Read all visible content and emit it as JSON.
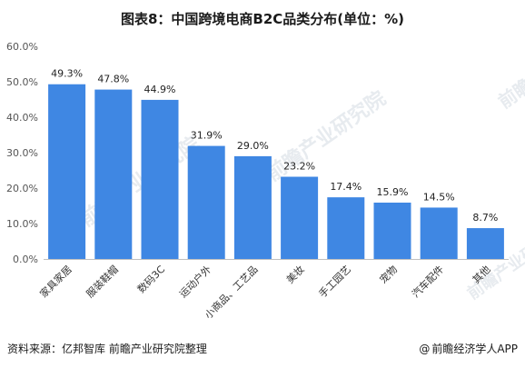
{
  "title": "图表8：中国跨境电商B2C品类分布(单位：%)",
  "chart_data": {
    "type": "bar",
    "title": "图表8：中国跨境电商B2C品类分布(单位：%)",
    "categories": [
      "家具家居",
      "服装鞋帽",
      "数码3C",
      "运动户外",
      "小商品、工艺品",
      "美妆",
      "手工园艺",
      "宠物",
      "汽车配件",
      "其他"
    ],
    "values": [
      49.3,
      47.8,
      44.9,
      31.9,
      29.0,
      23.2,
      17.4,
      15.9,
      14.5,
      8.7
    ],
    "value_labels": [
      "49.3%",
      "47.8%",
      "44.9%",
      "31.9%",
      "29.0%",
      "23.2%",
      "17.4%",
      "15.9%",
      "14.5%",
      "8.7%"
    ],
    "yticks": [
      "0.0%",
      "10.0%",
      "20.0%",
      "30.0%",
      "40.0%",
      "50.0%",
      "60.0%"
    ],
    "ylim": [
      0,
      60
    ],
    "xlabel": "",
    "ylabel": "",
    "bar_color": "#3f87e3",
    "grid": false
  },
  "watermark": "前瞻产业研究院",
  "footer": {
    "source": "资料来源：亿邦智库 前瞻产业研究院整理",
    "brand_at": "@",
    "brand": "前瞻经济学人APP"
  }
}
